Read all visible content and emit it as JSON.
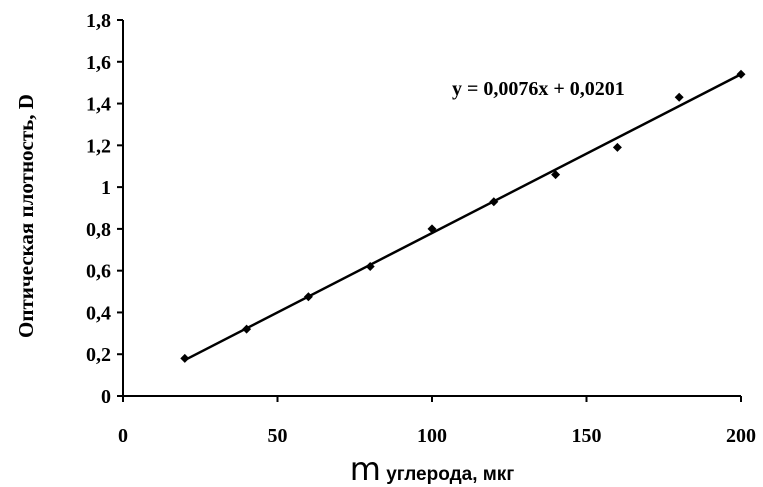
{
  "chart_data": {
    "type": "scatter",
    "xlabel_symbol": "m",
    "xlabel_text": " углерода, мкг",
    "ylabel": "Оптическая плотность, D",
    "xlim": [
      0,
      200
    ],
    "ylim": [
      0,
      1.8
    ],
    "x_ticks": [
      0,
      50,
      100,
      150,
      200
    ],
    "x_tick_labels": [
      "0",
      "50",
      "100",
      "150",
      "200"
    ],
    "y_ticks": [
      0,
      0.2,
      0.4,
      0.6,
      0.8,
      1.0,
      1.2,
      1.4,
      1.6,
      1.8
    ],
    "y_tick_labels": [
      "0",
      "0,2",
      "0,4",
      "0,6",
      "0,8",
      "1",
      "1,2",
      "1,4",
      "1,6",
      "1,8"
    ],
    "series": [
      {
        "x": [
          20,
          40,
          60,
          80,
          100,
          120,
          140,
          160,
          180,
          200
        ],
        "y": [
          0.18,
          0.32,
          0.475,
          0.62,
          0.8,
          0.93,
          1.06,
          1.19,
          1.43,
          1.54
        ]
      }
    ],
    "trendline": {
      "slope": 0.0076,
      "intercept": 0.0201,
      "x_start": 20,
      "x_end": 200
    },
    "equation": "y = 0,0076x + 0,0201",
    "grid": false,
    "marker": "diamond",
    "color": "#000000"
  }
}
